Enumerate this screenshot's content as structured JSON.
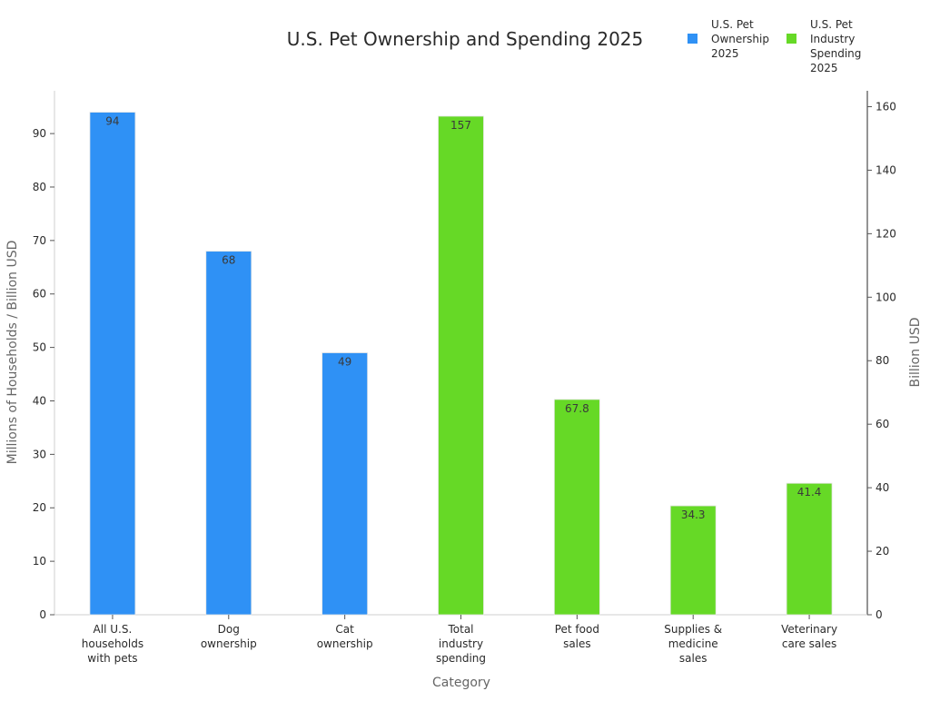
{
  "chart_data": {
    "type": "bar",
    "title": "U.S. Pet Ownership and Spending 2025",
    "xlabel": "Category",
    "ylabel_left": "Millions of Households / Billion USD",
    "ylabel_right": "Billion USD",
    "ylim_left": [
      0,
      98
    ],
    "ylim_right": [
      0,
      165
    ],
    "yticks_left": [
      0,
      10,
      20,
      30,
      40,
      50,
      60,
      70,
      80,
      90
    ],
    "yticks_right": [
      0,
      20,
      40,
      60,
      80,
      100,
      120,
      140,
      160
    ],
    "categories": [
      [
        "All U.S.",
        "households",
        "with pets"
      ],
      [
        "Dog",
        "ownership"
      ],
      [
        "Cat",
        "ownership"
      ],
      [
        "Total",
        "industry",
        "spending"
      ],
      [
        "Pet food",
        "sales"
      ],
      [
        "Supplies &",
        "medicine",
        "sales"
      ],
      [
        "Veterinary",
        "care sales"
      ]
    ],
    "legend_position": "top-right",
    "series": [
      {
        "name_lines": [
          "U.S. Pet",
          "Ownership",
          "2025"
        ],
        "axis": "left",
        "color": "#2f91f5",
        "values": [
          94,
          68,
          49,
          null,
          null,
          null,
          null
        ],
        "labels": [
          "94",
          "68",
          "49",
          "",
          "",
          "",
          ""
        ]
      },
      {
        "name_lines": [
          "U.S. Pet",
          "Industry",
          "Spending",
          "2025"
        ],
        "axis": "right",
        "color": "#66d926",
        "values": [
          null,
          null,
          null,
          157,
          67.8,
          34.3,
          41.4
        ],
        "labels": [
          "",
          "",
          "",
          "157",
          "67.8",
          "34.3",
          "41.4"
        ]
      }
    ]
  }
}
